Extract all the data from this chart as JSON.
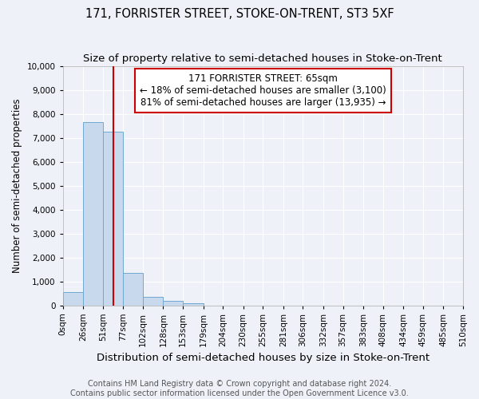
{
  "title": "171, FORRISTER STREET, STOKE-ON-TRENT, ST3 5XF",
  "subtitle": "Size of property relative to semi-detached houses in Stoke-on-Trent",
  "xlabel": "Distribution of semi-detached houses by size in Stoke-on-Trent",
  "ylabel": "Number of semi-detached properties",
  "footer": "Contains HM Land Registry data © Crown copyright and database right 2024.\nContains public sector information licensed under the Open Government Licence v3.0.",
  "bin_edges": [
    0,
    26,
    51,
    77,
    102,
    128,
    153,
    179,
    204,
    230,
    255,
    281,
    306,
    332,
    357,
    383,
    408,
    434,
    459,
    485,
    510
  ],
  "bin_labels": [
    "0sqm",
    "26sqm",
    "51sqm",
    "77sqm",
    "102sqm",
    "128sqm",
    "153sqm",
    "179sqm",
    "204sqm",
    "230sqm",
    "255sqm",
    "281sqm",
    "306sqm",
    "332sqm",
    "357sqm",
    "383sqm",
    "408sqm",
    "434sqm",
    "459sqm",
    "485sqm",
    "510sqm"
  ],
  "bar_values": [
    560,
    7650,
    7250,
    1350,
    350,
    190,
    100,
    0,
    0,
    0,
    0,
    0,
    0,
    0,
    0,
    0,
    0,
    0,
    0,
    0
  ],
  "bar_color": "#c8d8ed",
  "bar_edge_color": "#6fa8d0",
  "property_line_x": 65,
  "annotation_text": "171 FORRISTER STREET: 65sqm\n← 18% of semi-detached houses are smaller (3,100)\n81% of semi-detached houses are larger (13,935) →",
  "annotation_box_color": "#ffffff",
  "annotation_box_edge": "#cc0000",
  "vline_color": "#cc0000",
  "ylim": [
    0,
    10000
  ],
  "yticks": [
    0,
    1000,
    2000,
    3000,
    4000,
    5000,
    6000,
    7000,
    8000,
    9000,
    10000
  ],
  "background_color": "#eef2f8",
  "plot_bg_color": "#eef2f8",
  "grid_color": "#ffffff",
  "title_fontsize": 10.5,
  "subtitle_fontsize": 9.5,
  "xlabel_fontsize": 9.5,
  "ylabel_fontsize": 8.5,
  "tick_fontsize": 7.5,
  "footer_fontsize": 7.0,
  "annotation_fontsize": 8.5
}
